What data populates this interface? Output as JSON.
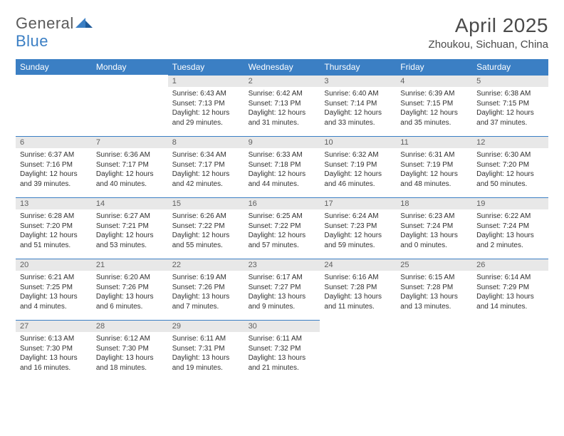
{
  "brand": {
    "label_general": "General",
    "label_blue": "Blue"
  },
  "header": {
    "month_title": "April 2025",
    "location": "Zhoukou, Sichuan, China"
  },
  "colors": {
    "header_bg": "#3b7fc4",
    "header_text": "#ffffff",
    "daynum_bg": "#e8e8e8",
    "daynum_text": "#606060",
    "cell_border": "#3b7fc4",
    "body_text": "#303030",
    "title_text": "#4a4a4a"
  },
  "day_names": [
    "Sunday",
    "Monday",
    "Tuesday",
    "Wednesday",
    "Thursday",
    "Friday",
    "Saturday"
  ],
  "first_weekday_index": 2,
  "daynum_fontsize": 11,
  "content_fontsize": 10,
  "days": [
    {
      "num": "1",
      "sunrise": "Sunrise: 6:43 AM",
      "sunset": "Sunset: 7:13 PM",
      "daylight": "Daylight: 12 hours and 29 minutes."
    },
    {
      "num": "2",
      "sunrise": "Sunrise: 6:42 AM",
      "sunset": "Sunset: 7:13 PM",
      "daylight": "Daylight: 12 hours and 31 minutes."
    },
    {
      "num": "3",
      "sunrise": "Sunrise: 6:40 AM",
      "sunset": "Sunset: 7:14 PM",
      "daylight": "Daylight: 12 hours and 33 minutes."
    },
    {
      "num": "4",
      "sunrise": "Sunrise: 6:39 AM",
      "sunset": "Sunset: 7:15 PM",
      "daylight": "Daylight: 12 hours and 35 minutes."
    },
    {
      "num": "5",
      "sunrise": "Sunrise: 6:38 AM",
      "sunset": "Sunset: 7:15 PM",
      "daylight": "Daylight: 12 hours and 37 minutes."
    },
    {
      "num": "6",
      "sunrise": "Sunrise: 6:37 AM",
      "sunset": "Sunset: 7:16 PM",
      "daylight": "Daylight: 12 hours and 39 minutes."
    },
    {
      "num": "7",
      "sunrise": "Sunrise: 6:36 AM",
      "sunset": "Sunset: 7:17 PM",
      "daylight": "Daylight: 12 hours and 40 minutes."
    },
    {
      "num": "8",
      "sunrise": "Sunrise: 6:34 AM",
      "sunset": "Sunset: 7:17 PM",
      "daylight": "Daylight: 12 hours and 42 minutes."
    },
    {
      "num": "9",
      "sunrise": "Sunrise: 6:33 AM",
      "sunset": "Sunset: 7:18 PM",
      "daylight": "Daylight: 12 hours and 44 minutes."
    },
    {
      "num": "10",
      "sunrise": "Sunrise: 6:32 AM",
      "sunset": "Sunset: 7:19 PM",
      "daylight": "Daylight: 12 hours and 46 minutes."
    },
    {
      "num": "11",
      "sunrise": "Sunrise: 6:31 AM",
      "sunset": "Sunset: 7:19 PM",
      "daylight": "Daylight: 12 hours and 48 minutes."
    },
    {
      "num": "12",
      "sunrise": "Sunrise: 6:30 AM",
      "sunset": "Sunset: 7:20 PM",
      "daylight": "Daylight: 12 hours and 50 minutes."
    },
    {
      "num": "13",
      "sunrise": "Sunrise: 6:28 AM",
      "sunset": "Sunset: 7:20 PM",
      "daylight": "Daylight: 12 hours and 51 minutes."
    },
    {
      "num": "14",
      "sunrise": "Sunrise: 6:27 AM",
      "sunset": "Sunset: 7:21 PM",
      "daylight": "Daylight: 12 hours and 53 minutes."
    },
    {
      "num": "15",
      "sunrise": "Sunrise: 6:26 AM",
      "sunset": "Sunset: 7:22 PM",
      "daylight": "Daylight: 12 hours and 55 minutes."
    },
    {
      "num": "16",
      "sunrise": "Sunrise: 6:25 AM",
      "sunset": "Sunset: 7:22 PM",
      "daylight": "Daylight: 12 hours and 57 minutes."
    },
    {
      "num": "17",
      "sunrise": "Sunrise: 6:24 AM",
      "sunset": "Sunset: 7:23 PM",
      "daylight": "Daylight: 12 hours and 59 minutes."
    },
    {
      "num": "18",
      "sunrise": "Sunrise: 6:23 AM",
      "sunset": "Sunset: 7:24 PM",
      "daylight": "Daylight: 13 hours and 0 minutes."
    },
    {
      "num": "19",
      "sunrise": "Sunrise: 6:22 AM",
      "sunset": "Sunset: 7:24 PM",
      "daylight": "Daylight: 13 hours and 2 minutes."
    },
    {
      "num": "20",
      "sunrise": "Sunrise: 6:21 AM",
      "sunset": "Sunset: 7:25 PM",
      "daylight": "Daylight: 13 hours and 4 minutes."
    },
    {
      "num": "21",
      "sunrise": "Sunrise: 6:20 AM",
      "sunset": "Sunset: 7:26 PM",
      "daylight": "Daylight: 13 hours and 6 minutes."
    },
    {
      "num": "22",
      "sunrise": "Sunrise: 6:19 AM",
      "sunset": "Sunset: 7:26 PM",
      "daylight": "Daylight: 13 hours and 7 minutes."
    },
    {
      "num": "23",
      "sunrise": "Sunrise: 6:17 AM",
      "sunset": "Sunset: 7:27 PM",
      "daylight": "Daylight: 13 hours and 9 minutes."
    },
    {
      "num": "24",
      "sunrise": "Sunrise: 6:16 AM",
      "sunset": "Sunset: 7:28 PM",
      "daylight": "Daylight: 13 hours and 11 minutes."
    },
    {
      "num": "25",
      "sunrise": "Sunrise: 6:15 AM",
      "sunset": "Sunset: 7:28 PM",
      "daylight": "Daylight: 13 hours and 13 minutes."
    },
    {
      "num": "26",
      "sunrise": "Sunrise: 6:14 AM",
      "sunset": "Sunset: 7:29 PM",
      "daylight": "Daylight: 13 hours and 14 minutes."
    },
    {
      "num": "27",
      "sunrise": "Sunrise: 6:13 AM",
      "sunset": "Sunset: 7:30 PM",
      "daylight": "Daylight: 13 hours and 16 minutes."
    },
    {
      "num": "28",
      "sunrise": "Sunrise: 6:12 AM",
      "sunset": "Sunset: 7:30 PM",
      "daylight": "Daylight: 13 hours and 18 minutes."
    },
    {
      "num": "29",
      "sunrise": "Sunrise: 6:11 AM",
      "sunset": "Sunset: 7:31 PM",
      "daylight": "Daylight: 13 hours and 19 minutes."
    },
    {
      "num": "30",
      "sunrise": "Sunrise: 6:11 AM",
      "sunset": "Sunset: 7:32 PM",
      "daylight": "Daylight: 13 hours and 21 minutes."
    }
  ]
}
